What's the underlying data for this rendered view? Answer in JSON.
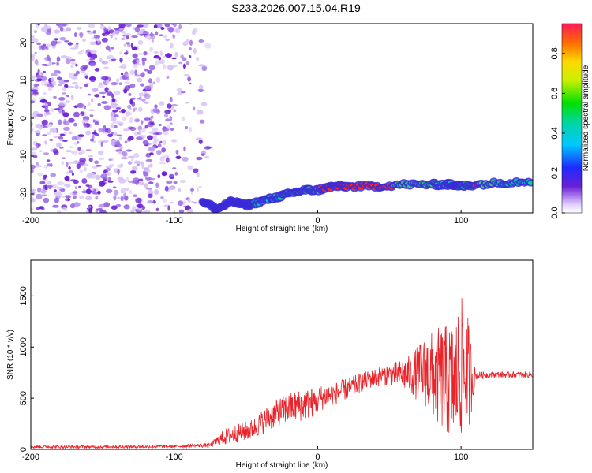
{
  "title": "S233.2026.007.15.04.R19",
  "colors": {
    "line": "#e8242a",
    "speckle": "#6a1fd6",
    "ridge_low": "#3a2bd9",
    "ridge_mid": "#00d6a0",
    "ridge_high": "#ff2a2a"
  },
  "chart_data": [
    {
      "type": "heatmap",
      "title": "S233.2026.007.15.04.R19",
      "xlabel": "Height of straight line (km)",
      "ylabel": "Frequency (Hz)",
      "xlim": [
        -200,
        150
      ],
      "ylim": [
        -25,
        25
      ],
      "x_ticks": [
        -200,
        -100,
        0,
        100
      ],
      "y_ticks": [
        -20,
        -10,
        0,
        10,
        20
      ],
      "x_tick_labels": [
        "-200",
        "-100",
        "0",
        "100"
      ],
      "y_tick_labels": [
        "-20",
        "-10",
        "0",
        "10",
        "20"
      ],
      "colorbar": {
        "label": "Normalized spectral amplitude",
        "range": [
          0,
          0.95
        ],
        "ticks": [
          0.0,
          0.2,
          0.4,
          0.6,
          0.8
        ],
        "tick_labels": [
          "0.0",
          "0.2",
          "0.4",
          "0.6",
          "0.8"
        ]
      },
      "ridge": {
        "x": [
          -80,
          -70,
          -60,
          -50,
          -40,
          -30,
          -20,
          -10,
          0,
          10,
          20,
          40,
          60,
          80,
          90,
          95,
          100,
          110,
          130,
          150
        ],
        "frequency": [
          -22,
          -24,
          -22,
          -23,
          -22,
          -21,
          -20,
          -19,
          -19,
          -18,
          -18,
          -18,
          -17.5,
          -17.5,
          -17.5,
          -17.5,
          -18,
          -17.5,
          -17,
          -16.5
        ],
        "amplitude": [
          0.3,
          0.35,
          0.4,
          0.35,
          0.45,
          0.5,
          0.6,
          0.7,
          0.8,
          0.9,
          0.9,
          0.85,
          0.8,
          0.6,
          0.5,
          0.45,
          0.5,
          0.85,
          0.45,
          0.4
        ]
      },
      "noise_region_x": [
        -200,
        -75
      ]
    },
    {
      "type": "line",
      "xlabel": "Height of straight line (km)",
      "ylabel": "SNR (10 * v/v)",
      "xlim": [
        -200,
        150
      ],
      "ylim": [
        0,
        1850
      ],
      "x_ticks": [
        -200,
        -100,
        0,
        100
      ],
      "y_ticks": [
        0,
        500,
        1000,
        1500
      ],
      "x_tick_labels": [
        "-200",
        "-100",
        "0",
        "100"
      ],
      "y_tick_labels": [
        "0",
        "500",
        "1000",
        "1500"
      ],
      "series": [
        {
          "x": [
            -200,
            -150,
            -100,
            -75,
            -65,
            -55,
            -45,
            -35,
            -25,
            -15,
            -5,
            5,
            15,
            25,
            35,
            45,
            55,
            65,
            75,
            85,
            95,
            100,
            105,
            110,
            120,
            135,
            150
          ],
          "mean": [
            25,
            25,
            30,
            40,
            120,
            160,
            200,
            300,
            380,
            420,
            450,
            520,
            560,
            620,
            680,
            720,
            740,
            730,
            760,
            700,
            650,
            800,
            700,
            720,
            730,
            730,
            730
          ],
          "spread": [
            15,
            15,
            15,
            20,
            80,
            90,
            100,
            130,
            140,
            160,
            150,
            120,
            110,
            100,
            90,
            100,
            120,
            200,
            350,
            500,
            600,
            700,
            600,
            40,
            30,
            30,
            30
          ]
        }
      ]
    }
  ]
}
